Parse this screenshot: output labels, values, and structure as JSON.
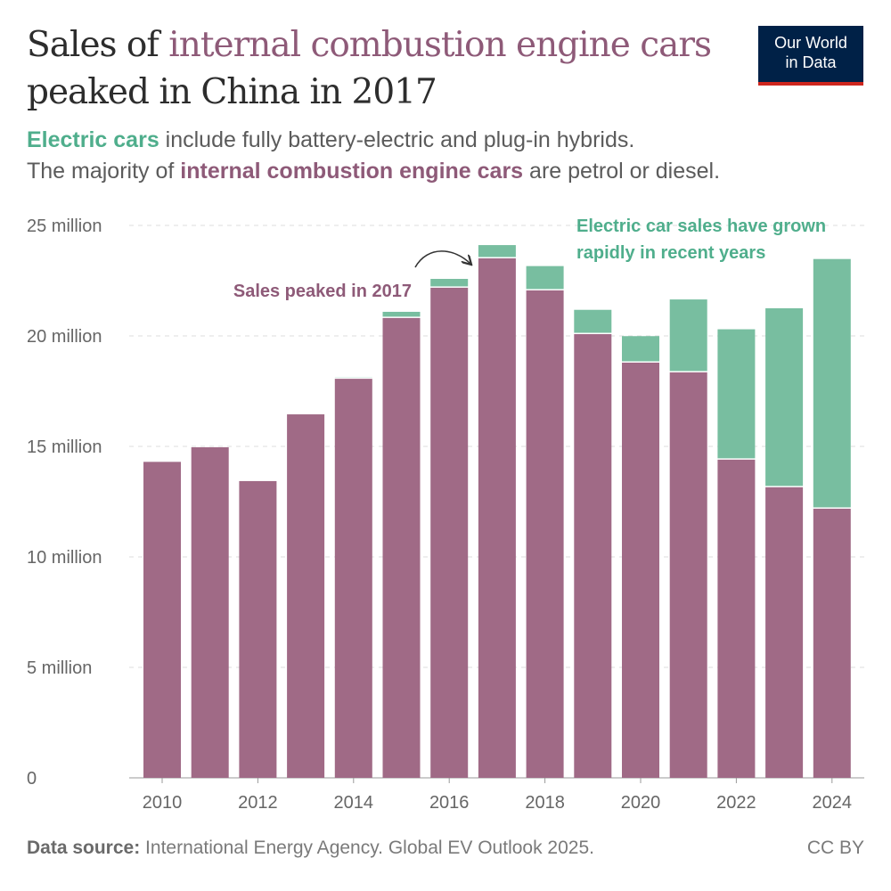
{
  "title": {
    "part1": "Sales of ",
    "part2": "internal combustion engine cars",
    "part3": " peaked in China in 2017"
  },
  "subtitle": {
    "line1_highlight": "Electric cars",
    "line1_rest": " include fully battery-electric and plug-in hybrids.",
    "line2_start": "The majority of ",
    "line2_highlight": "internal combustion engine cars",
    "line2_end": " are petrol or diesel."
  },
  "logo": {
    "line1": "Our World",
    "line2": "in Data"
  },
  "colors": {
    "ice": "#a06a86",
    "electric": "#78bea0",
    "ice_text": "#8e5a78",
    "electric_text": "#4fae8c"
  },
  "chart_data": {
    "type": "bar",
    "stacked": true,
    "categories": [
      "2010",
      "2011",
      "2012",
      "2013",
      "2014",
      "2015",
      "2016",
      "2017",
      "2018",
      "2019",
      "2020",
      "2021",
      "2022",
      "2023",
      "2024"
    ],
    "series": [
      {
        "name": "internal combustion engine cars",
        "values": [
          14.3,
          14.96,
          13.43,
          16.45,
          18.06,
          20.81,
          22.18,
          23.51,
          22.06,
          20.08,
          18.79,
          18.35,
          14.4,
          13.15,
          12.18
        ]
      },
      {
        "name": "Electric cars",
        "values": [
          0.01,
          0.01,
          0.01,
          0.02,
          0.07,
          0.28,
          0.4,
          0.6,
          1.1,
          1.1,
          1.2,
          3.3,
          5.9,
          8.1,
          11.3
        ]
      }
    ],
    "ylim": [
      0,
      25
    ],
    "yticks": [
      0,
      5,
      10,
      15,
      20,
      25
    ],
    "ytick_labels": [
      "0",
      "5 million",
      "10 million",
      "15 million",
      "20 million",
      "25 million"
    ],
    "xtick_labels": [
      "2010",
      "2012",
      "2014",
      "2016",
      "2018",
      "2020",
      "2022",
      "2024"
    ],
    "grid": "horizontal dashed",
    "annotations": [
      "Sales peaked in 2017",
      "Electric car sales have grown",
      "rapidly in recent years"
    ]
  },
  "footer": {
    "source_label": "Data source:",
    "source_text": " International Energy Agency. Global EV Outlook 2025.",
    "license": "CC BY"
  }
}
